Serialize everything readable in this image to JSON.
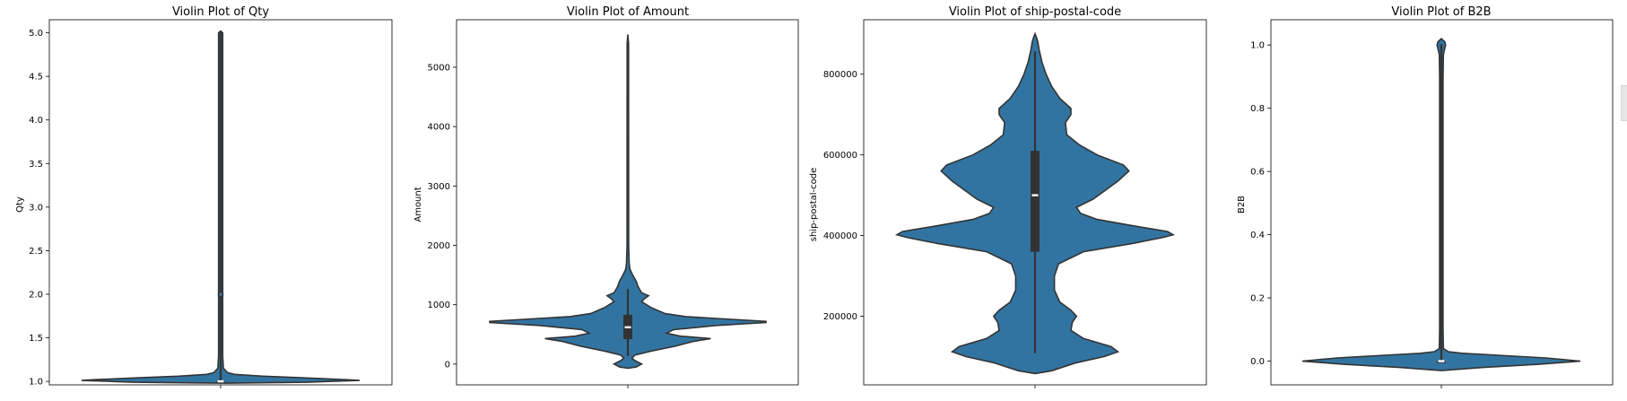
{
  "chart_data": [
    {
      "type": "violin",
      "title": "Violin Plot of Qty",
      "ylabel": "Qty",
      "ylim": [
        0.96,
        5.15
      ],
      "yticks": [
        1.0,
        1.5,
        2.0,
        2.5,
        3.0,
        3.5,
        4.0,
        4.5,
        5.0
      ],
      "tick_format": "0.0",
      "color": "#3274a1",
      "quartiles": {
        "min": 1.0,
        "q1": 1.0,
        "median": 1.0,
        "q3": 1.0,
        "max": 5.0
      },
      "outliers": [
        2.0
      ],
      "profile": [
        [
          0.98,
          0.0
        ],
        [
          0.985,
          0.35
        ],
        [
          0.99,
          0.62
        ],
        [
          1.0,
          0.8
        ],
        [
          1.01,
          1.0
        ],
        [
          1.02,
          0.9
        ],
        [
          1.04,
          0.6
        ],
        [
          1.06,
          0.3
        ],
        [
          1.08,
          0.1
        ],
        [
          1.1,
          0.05
        ],
        [
          1.15,
          0.02
        ],
        [
          1.3,
          0.015
        ],
        [
          2.0,
          0.015
        ],
        [
          5.0,
          0.015
        ],
        [
          5.02,
          0.0
        ]
      ]
    },
    {
      "type": "violin",
      "title": "Violin Plot of Amount",
      "ylabel": "Amount",
      "ylim": [
        -350,
        5800
      ],
      "yticks": [
        0,
        1000,
        2000,
        3000,
        4000,
        5000
      ],
      "tick_format": "0",
      "color": "#3274a1",
      "quartiles": {
        "min": 150,
        "q1": 420,
        "median": 620,
        "q3": 830,
        "max": 1250
      },
      "outliers": [],
      "profile": [
        [
          -70,
          0.0
        ],
        [
          -50,
          0.06
        ],
        [
          0,
          0.1
        ],
        [
          60,
          0.05
        ],
        [
          100,
          0.03
        ],
        [
          150,
          0.05
        ],
        [
          220,
          0.17
        ],
        [
          300,
          0.34
        ],
        [
          380,
          0.47
        ],
        [
          430,
          0.6
        ],
        [
          470,
          0.38
        ],
        [
          520,
          0.28
        ],
        [
          580,
          0.33
        ],
        [
          650,
          0.64
        ],
        [
          700,
          1.0
        ],
        [
          720,
          1.0
        ],
        [
          760,
          0.7
        ],
        [
          800,
          0.42
        ],
        [
          850,
          0.27
        ],
        [
          950,
          0.17
        ],
        [
          1050,
          0.1
        ],
        [
          1100,
          0.12
        ],
        [
          1150,
          0.15
        ],
        [
          1200,
          0.1
        ],
        [
          1300,
          0.075
        ],
        [
          1400,
          0.06
        ],
        [
          1500,
          0.035
        ],
        [
          1600,
          0.015
        ],
        [
          1700,
          0.01
        ],
        [
          2000,
          0.006
        ],
        [
          5400,
          0.005
        ],
        [
          5550,
          0.0
        ]
      ]
    },
    {
      "type": "violin",
      "title": "Violin Plot of ship-postal-code",
      "ylabel": "ship-postal-code",
      "ylim": [
        30000,
        935000
      ],
      "yticks": [
        200000,
        400000,
        600000,
        800000
      ],
      "tick_format": "0",
      "color": "#3274a1",
      "quartiles": {
        "min": 110000,
        "q1": 360000,
        "median": 500000,
        "q3": 610000,
        "max": 855000
      },
      "outliers": [],
      "profile": [
        [
          58000,
          0.0
        ],
        [
          65000,
          0.12
        ],
        [
          85000,
          0.3
        ],
        [
          100000,
          0.5
        ],
        [
          112000,
          0.6
        ],
        [
          125000,
          0.55
        ],
        [
          145000,
          0.35
        ],
        [
          165000,
          0.26
        ],
        [
          185000,
          0.27
        ],
        [
          200000,
          0.3
        ],
        [
          215000,
          0.26
        ],
        [
          235000,
          0.18
        ],
        [
          265000,
          0.14
        ],
        [
          300000,
          0.14
        ],
        [
          330000,
          0.17
        ],
        [
          360000,
          0.35
        ],
        [
          380000,
          0.7
        ],
        [
          395000,
          0.92
        ],
        [
          402000,
          1.0
        ],
        [
          410000,
          0.96
        ],
        [
          425000,
          0.7
        ],
        [
          440000,
          0.45
        ],
        [
          455000,
          0.33
        ],
        [
          470000,
          0.3
        ],
        [
          490000,
          0.42
        ],
        [
          510000,
          0.5
        ],
        [
          535000,
          0.6
        ],
        [
          560000,
          0.68
        ],
        [
          575000,
          0.64
        ],
        [
          600000,
          0.45
        ],
        [
          625000,
          0.32
        ],
        [
          650000,
          0.23
        ],
        [
          680000,
          0.22
        ],
        [
          700000,
          0.26
        ],
        [
          715000,
          0.26
        ],
        [
          740000,
          0.18
        ],
        [
          770000,
          0.12
        ],
        [
          800000,
          0.08
        ],
        [
          830000,
          0.05
        ],
        [
          860000,
          0.03
        ],
        [
          880000,
          0.02
        ],
        [
          890000,
          0.012
        ],
        [
          900000,
          0.0
        ]
      ]
    },
    {
      "type": "violin",
      "title": "Violin Plot of B2B",
      "ylabel": "B2B",
      "ylim": [
        -0.075,
        1.08
      ],
      "yticks": [
        0.0,
        0.2,
        0.4,
        0.6,
        0.8,
        1.0
      ],
      "tick_format": "0.0",
      "color": "#3274a1",
      "quartiles": {
        "min": 0.0,
        "q1": 0.0,
        "median": 0.0,
        "q3": 0.0,
        "max": 1.0
      },
      "outliers": [],
      "profile": [
        [
          -0.03,
          0.0
        ],
        [
          -0.02,
          0.3
        ],
        [
          -0.01,
          0.7
        ],
        [
          0.0,
          1.0
        ],
        [
          0.01,
          0.75
        ],
        [
          0.02,
          0.35
        ],
        [
          0.025,
          0.15
        ],
        [
          0.03,
          0.05
        ],
        [
          0.04,
          0.015
        ],
        [
          0.1,
          0.012
        ],
        [
          0.9,
          0.012
        ],
        [
          0.97,
          0.015
        ],
        [
          0.99,
          0.025
        ],
        [
          1.0,
          0.03
        ],
        [
          1.01,
          0.025
        ],
        [
          1.02,
          0.0
        ]
      ]
    }
  ]
}
